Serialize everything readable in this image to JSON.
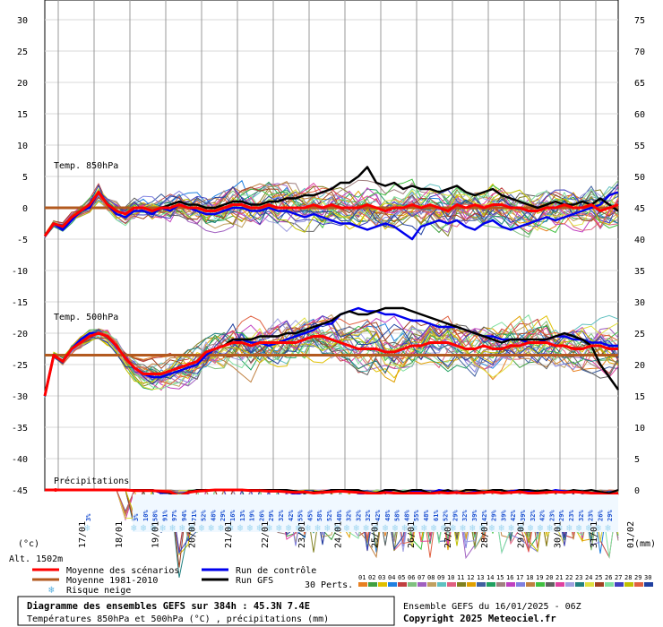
{
  "chart_data": {
    "type": "line",
    "panels": {
      "t850": {
        "label": "Temp. 850hPa",
        "mean": [
          -4.5,
          -2.5,
          -3,
          -1.5,
          -0.5,
          0.5,
          2.5,
          0.5,
          -0.5,
          -1,
          0,
          0,
          -0.5,
          0,
          0,
          0.5,
          0,
          0,
          -0.5,
          -0.5,
          0,
          0.5,
          0.5,
          0,
          0,
          0.5,
          0,
          0,
          0,
          0,
          0.5,
          0,
          0.5,
          0,
          0,
          0,
          0.5,
          0,
          -0.5,
          0,
          0,
          0.5,
          0,
          0.5,
          0,
          -0.5,
          0.5,
          0,
          0.5,
          0,
          0.5,
          0.5,
          0,
          0,
          -0.5,
          -0.5,
          0,
          0,
          0.5,
          0,
          0,
          0.5,
          -0.5,
          0,
          0.5
        ],
        "mean_1981_2010": [
          0,
          0,
          0,
          0,
          0,
          0,
          0,
          0,
          0,
          0,
          0,
          0,
          0,
          0,
          0,
          0,
          0,
          0,
          0,
          0,
          0,
          0,
          0,
          0,
          0,
          0,
          0,
          0,
          0,
          0,
          0,
          0,
          0,
          0,
          0,
          0,
          0,
          0,
          0,
          0,
          0,
          0,
          0,
          0,
          0,
          0,
          0,
          0,
          0,
          0,
          0,
          0,
          0,
          0,
          0,
          0,
          0,
          0,
          0,
          0,
          0,
          0,
          0,
          0,
          0
        ],
        "control": [
          -4.5,
          -2.5,
          -3.5,
          -2,
          -0.5,
          0,
          2.5,
          0.5,
          -1,
          -1.5,
          -0.5,
          -0.5,
          -1,
          0,
          -0.5,
          0.5,
          0,
          -0.5,
          -1,
          -1,
          -0.5,
          0,
          0,
          -0.5,
          -0.5,
          0,
          -0.5,
          -0.5,
          -1,
          -1.5,
          -1,
          -1.5,
          -2,
          -2.5,
          -2.5,
          -3,
          -3.5,
          -3,
          -2.5,
          -3,
          -4,
          -5,
          -3,
          -2.5,
          -2,
          -2.5,
          -2,
          -3,
          -3.5,
          -2.5,
          -2,
          -3,
          -3.5,
          -3,
          -2.5,
          -2,
          -1.5,
          -2,
          -1.5,
          -1,
          -0.5,
          0,
          0.5,
          2,
          2.5
        ],
        "gfs": [
          -4.5,
          -2.5,
          -3,
          -1.5,
          -0.5,
          0.5,
          2.5,
          0.5,
          -0.5,
          -1,
          0,
          0,
          -0.5,
          0,
          0.5,
          1,
          0.5,
          0.5,
          0,
          0,
          0.5,
          1,
          1,
          0.5,
          0.5,
          1,
          1,
          1.5,
          1.5,
          2,
          2,
          2.5,
          3,
          4,
          4,
          5,
          6.5,
          4,
          3.5,
          4,
          3,
          3.5,
          3,
          3,
          2.5,
          3,
          3.5,
          2.5,
          2,
          2.5,
          3,
          2,
          1.5,
          1,
          0.5,
          0,
          0.5,
          1,
          0.5,
          0.5,
          1,
          0.5,
          1.5,
          0.5,
          -0.5
        ]
      },
      "t500": {
        "label": "Temp. 500hPa",
        "mean": [
          -30,
          -23.5,
          -24.5,
          -22.5,
          -21.5,
          -20.5,
          -20,
          -20.5,
          -22,
          -24,
          -25.5,
          -26.5,
          -26.5,
          -26.5,
          -26,
          -25.5,
          -25,
          -24.5,
          -23,
          -22.5,
          -22,
          -21.5,
          -21.5,
          -22,
          -21.5,
          -21.5,
          -21.5,
          -21.5,
          -21.5,
          -21,
          -20.5,
          -20.5,
          -21,
          -21.5,
          -22,
          -22.5,
          -22.5,
          -22.5,
          -23,
          -23,
          -22.5,
          -22,
          -22,
          -21.5,
          -21.5,
          -21.5,
          -22,
          -22.5,
          -22.5,
          -22,
          -22.5,
          -22.5,
          -22,
          -22,
          -21.5,
          -21.5,
          -21.5,
          -22,
          -22,
          -22.5,
          -22.5,
          -22,
          -22,
          -22.5,
          -22.5
        ],
        "mean_1981_2010": [
          -23.5,
          -23.5,
          -23.5,
          -23.5,
          -23.5,
          -23.5,
          -23.5,
          -23.5,
          -23.5,
          -23.5,
          -23.5,
          -23.5,
          -23.5,
          -23.5,
          -23.5,
          -23.5,
          -23.5,
          -23.5,
          -23.5,
          -23.5,
          -23.5,
          -23.5,
          -23.5,
          -23.5,
          -23.5,
          -23.5,
          -23.5,
          -23.5,
          -23.5,
          -23.5,
          -23.5,
          -23.5,
          -23.5,
          -23.5,
          -23.5,
          -23.5,
          -23.5,
          -23.5,
          -23.5,
          -23.5,
          -23.5,
          -23.5,
          -23.5,
          -23.5,
          -23.5,
          -23.5,
          -23.5,
          -23.5,
          -23.5,
          -23.5,
          -23.5,
          -23.5,
          -23.5,
          -23.5,
          -23.5,
          -23.5,
          -23.5,
          -23.5,
          -23.5,
          -23.5,
          -23.5,
          -23.5,
          -23.5,
          -23.5,
          -23.5
        ],
        "control": [
          -30,
          -23.5,
          -24.5,
          -22.5,
          -21,
          -20,
          -20,
          -20.5,
          -22,
          -24,
          -25.5,
          -26.5,
          -27,
          -27,
          -26.5,
          -26,
          -25.5,
          -25,
          -23.5,
          -22.5,
          -22,
          -21.5,
          -21,
          -21.5,
          -21.5,
          -22,
          -21.5,
          -21,
          -20.5,
          -20,
          -19.5,
          -18.5,
          -18.5,
          -17,
          -16.5,
          -16,
          -16.5,
          -16.5,
          -17,
          -17,
          -17.5,
          -18,
          -18,
          -18.5,
          -19,
          -19,
          -19,
          -19.5,
          -20,
          -20.5,
          -20.5,
          -21,
          -21,
          -21,
          -21.5,
          -21.5,
          -21,
          -20.5,
          -20.5,
          -21,
          -21,
          -21.5,
          -21.5,
          -22,
          -22
        ],
        "gfs": [
          -30,
          -23.5,
          -24.5,
          -22.5,
          -21.5,
          -20.5,
          -20,
          -20.5,
          -22,
          -24,
          -25.5,
          -26.5,
          -26.5,
          -26.5,
          -26,
          -25.5,
          -25,
          -24.5,
          -23,
          -22.5,
          -22,
          -21,
          -21,
          -21,
          -20.5,
          -20.5,
          -20.5,
          -20,
          -20,
          -19.5,
          -19,
          -18.5,
          -18,
          -17,
          -16.5,
          -17,
          -17,
          -16.5,
          -16,
          -16,
          -16,
          -16.5,
          -17,
          -17.5,
          -18,
          -18.5,
          -19,
          -19.5,
          -20,
          -20.5,
          -21,
          -21.5,
          -21,
          -21,
          -21,
          -21,
          -21,
          -20.5,
          -20,
          -20.5,
          -21,
          -22,
          -25,
          -27,
          -29
        ]
      },
      "precip": {
        "label": "Précipitations",
        "mean": [
          0,
          0,
          0,
          0,
          0,
          0,
          0,
          0,
          0,
          0,
          0.1,
          0.1,
          0.1,
          0.2,
          0.3,
          1,
          0.4,
          0.2,
          0.1,
          0,
          0,
          0,
          0,
          0.1,
          0.1,
          0.2,
          0.2,
          0.3,
          0.4,
          0.3,
          0.5,
          0.4,
          0.3,
          0.2,
          0.3,
          0.4,
          0.5,
          0.6,
          0.4,
          0.5,
          0.6,
          0.5,
          0.5,
          0.6,
          0.4,
          0.5,
          0.4,
          0.6,
          0.5,
          0.4,
          0.3,
          0.5,
          0.4,
          0.3,
          0.5,
          0.5,
          0.4,
          0.3,
          0.4,
          0.3,
          0.4,
          0.5,
          0.6,
          0.8,
          0.5
        ],
        "control": [
          0,
          0,
          0,
          0,
          0,
          0,
          0,
          0,
          0,
          0,
          0,
          0,
          0,
          0.5,
          0.5,
          1.5,
          0.5,
          0,
          0,
          0,
          0,
          0,
          0,
          0,
          0,
          0,
          0,
          0.2,
          0.8,
          0.3,
          0.5,
          0.3,
          0,
          0,
          0,
          0.5,
          1,
          0.5,
          0,
          0.5,
          0.8,
          0.3,
          0.3,
          0.5,
          0,
          0.2,
          0.5,
          0.5,
          0.3,
          0.2,
          0.3,
          0.5,
          0.2,
          0,
          0.2,
          0.3,
          0.4,
          0,
          0.2,
          0.2,
          0.5,
          0.5,
          0.3,
          1,
          0.5
        ],
        "gfs": [
          0,
          0,
          0,
          0,
          0,
          0,
          0,
          0,
          0,
          0,
          0,
          0,
          0,
          0.3,
          0.5,
          1,
          0.3,
          0,
          0,
          0,
          0,
          0,
          0,
          0,
          0,
          0,
          0,
          0,
          0.2,
          0.5,
          0.3,
          0.3,
          0,
          0,
          0,
          0,
          0.5,
          0.5,
          0,
          0,
          0.3,
          0,
          0,
          0.5,
          0.3,
          0,
          0.5,
          0,
          0,
          0.3,
          0,
          0,
          0.5,
          0,
          0,
          0.2,
          0,
          0.3,
          0.4,
          0,
          0.2,
          0,
          0.3,
          0.5,
          0
        ]
      }
    },
    "left_axis": {
      "min": -45,
      "max": 30,
      "unit": "(°c)",
      "ticks": [
        "30",
        "25",
        "20",
        "15",
        "10",
        "5",
        "0",
        "-5",
        "-10",
        "-15",
        "-20",
        "-25",
        "-30",
        "-35",
        "-40",
        "-45"
      ]
    },
    "right_axis": {
      "unit": "(mm)",
      "ticks": [
        "75",
        "70",
        "65",
        "60",
        "55",
        "50",
        "45",
        "40",
        "35",
        "30",
        "25",
        "20",
        "15",
        "10",
        "5",
        "0"
      ]
    },
    "x_dates": [
      "17/01",
      "18/01",
      "19/01",
      "20/01",
      "21/01",
      "22/01",
      "23/01",
      "24/01",
      "25/01",
      "26/01",
      "27/01",
      "28/01",
      "29/01",
      "30/01",
      "31/01",
      "01/02"
    ],
    "snow_risk": {
      "first": "3%",
      "values": [
        "3%",
        "10%",
        "58%",
        "91%",
        "97%",
        "94%",
        "71%",
        "52%",
        "48%",
        "29%",
        "16%",
        "13%",
        "19%",
        "26%",
        "29%",
        "32%",
        "42%",
        "55%",
        "45%",
        "58%",
        "52%",
        "48%",
        "32%",
        "32%",
        "32%",
        "42%",
        "48%",
        "58%",
        "48%",
        "55%",
        "48%",
        "61%",
        "52%",
        "29%",
        "32%",
        "39%",
        "42%",
        "29%",
        "39%",
        "42%",
        "39%",
        "32%",
        "42%",
        "23%",
        "29%",
        "23%",
        "32%",
        "23%",
        "26%",
        "29%"
      ]
    }
  },
  "legend": {
    "altitude": "Alt. 1502m",
    "mean_label": "Moyenne des scénarios",
    "normal_label": "Moyenne 1981-2010",
    "snow_label": "Risque neige",
    "control_label": "Run de contrôle",
    "gfs_label": "Run GFS",
    "perts_label": "30 Perts.",
    "pert_numbers": [
      "01",
      "02",
      "03",
      "04",
      "05",
      "06",
      "07",
      "08",
      "09",
      "10",
      "11",
      "12",
      "13",
      "14",
      "15",
      "16",
      "17",
      "18",
      "19",
      "20",
      "21",
      "22",
      "23",
      "24",
      "25",
      "26",
      "27",
      "28",
      "29",
      "30"
    ],
    "pert_colors": [
      "#e88020",
      "#40a040",
      "#e0c000",
      "#2080e0",
      "#c04040",
      "#80c080",
      "#a060c0",
      "#c0a060",
      "#60c0c0",
      "#e06080",
      "#808020",
      "#e0a000",
      "#4060a0",
      "#20a060",
      "#a08080",
      "#c040c0",
      "#8080e0",
      "#c08040",
      "#40c040",
      "#606060",
      "#e040a0",
      "#a0a0e0",
      "#208080",
      "#e0e040",
      "#a04020",
      "#80e0a0",
      "#4040c0",
      "#c0c000",
      "#e06040",
      "#2040a0"
    ]
  },
  "footer": {
    "title": "Diagramme des ensembles GEFS sur 384h : 45.3N 7.4E",
    "subtitle": "Températures 850hPa et 500hPa (°C) , précipitations (mm)",
    "run": "Ensemble GEFS du 16/01/2025 - 06Z",
    "copyright": "Copyright 2025 Meteociel.fr"
  },
  "colors": {
    "mean": "#ff0000",
    "normal": "#b35a1f",
    "control": "#0000ee",
    "gfs": "#000000",
    "snow": "#9fd6f0"
  }
}
